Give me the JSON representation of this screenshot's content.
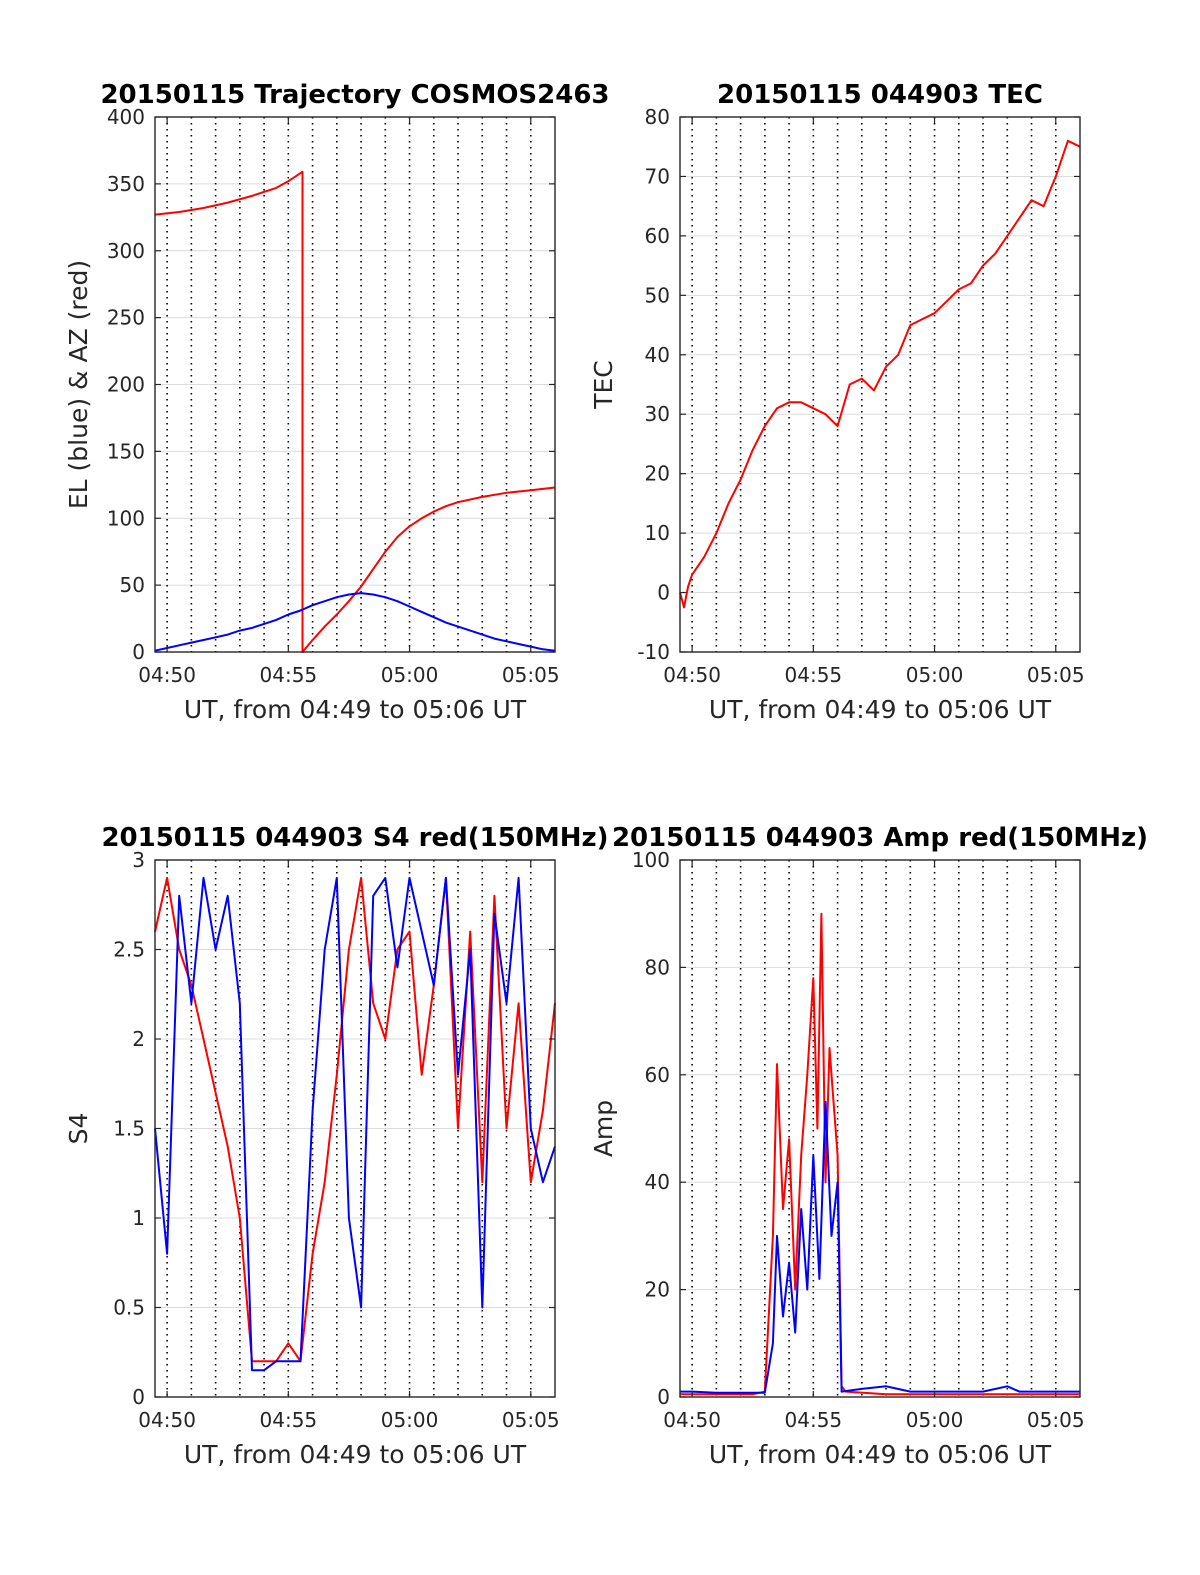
{
  "colors": {
    "red": "#ff0000",
    "blue": "#0000ff",
    "grid": "#dcdcdc",
    "axis": "#262626"
  },
  "chart_data": [
    {
      "type": "line",
      "title": "20150115 Trajectory COSMOS2463",
      "xlabel": "UT, from 04:49 to 05:06 UT",
      "ylabel": "EL (blue) & AZ (red)",
      "xlim": [
        "04:49:30",
        "05:06:00"
      ],
      "ylim": [
        0,
        400
      ],
      "xticks": [
        "04:50",
        "04:55",
        "05:00",
        "05:05"
      ],
      "yticks": [
        "0",
        "50",
        "100",
        "150",
        "200",
        "250",
        "300",
        "350",
        "400"
      ],
      "grid": true,
      "series": [
        {
          "color": "red",
          "x": [
            "04:49:30",
            "04:50:30",
            "04:51:30",
            "04:52:30",
            "04:53:30",
            "04:54:30",
            "04:55:00",
            "04:55:35",
            "04:55:35",
            "04:56:00",
            "04:56:30",
            "04:57:00",
            "04:57:30",
            "04:58:00",
            "04:58:30",
            "04:59:00",
            "04:59:30",
            "05:00:00",
            "05:00:30",
            "05:01:00",
            "05:01:30",
            "05:02:00",
            "05:03:00",
            "05:04:00",
            "05:05:00",
            "05:06:00"
          ],
          "values": [
            327,
            329,
            332,
            336,
            341,
            347,
            352,
            359,
            0,
            9,
            19,
            28,
            38,
            49,
            62,
            75,
            86,
            94,
            100,
            105,
            109,
            112,
            116,
            119,
            121,
            123
          ]
        },
        {
          "color": "blue",
          "x": [
            "04:49:30",
            "04:50:00",
            "04:50:30",
            "04:51:00",
            "04:51:30",
            "04:52:00",
            "04:52:30",
            "04:53:00",
            "04:53:30",
            "04:54:00",
            "04:54:30",
            "04:55:00",
            "04:55:30",
            "04:56:00",
            "04:56:30",
            "04:57:00",
            "04:57:30",
            "04:58:00",
            "04:58:30",
            "04:59:00",
            "04:59:30",
            "05:00:00",
            "05:00:30",
            "05:01:00",
            "05:01:30",
            "05:02:00",
            "05:02:30",
            "05:03:00",
            "05:03:30",
            "05:04:00",
            "05:04:30",
            "05:05:00",
            "05:05:30",
            "05:06:00"
          ],
          "values": [
            1,
            3,
            5,
            7,
            9,
            11,
            13,
            16,
            18,
            21,
            24,
            28,
            31,
            35,
            38,
            41,
            43,
            44,
            43,
            41,
            38,
            34,
            30,
            26,
            22,
            19,
            16,
            13,
            10,
            8,
            6,
            4,
            2,
            1
          ]
        }
      ]
    },
    {
      "type": "line",
      "title": "20150115 044903 TEC",
      "xlabel": "UT, from 04:49 to 05:06 UT",
      "ylabel": "TEC",
      "xlim": [
        "04:49:30",
        "05:06:00"
      ],
      "ylim": [
        -10,
        80
      ],
      "xticks": [
        "04:50",
        "04:55",
        "05:00",
        "05:05"
      ],
      "yticks": [
        "-10",
        "0",
        "10",
        "20",
        "30",
        "40",
        "50",
        "60",
        "70",
        "80"
      ],
      "grid": true,
      "series": [
        {
          "color": "red",
          "x": [
            "04:49:30",
            "04:49:40",
            "04:49:50",
            "04:50:00",
            "04:50:30",
            "04:51:00",
            "04:51:30",
            "04:52:00",
            "04:52:30",
            "04:53:00",
            "04:53:30",
            "04:54:00",
            "04:54:30",
            "04:55:00",
            "04:55:30",
            "04:56:00",
            "04:56:30",
            "04:57:00",
            "04:57:30",
            "04:58:00",
            "04:58:30",
            "04:59:00",
            "04:59:30",
            "05:00:00",
            "05:00:30",
            "05:01:00",
            "05:01:30",
            "05:02:00",
            "05:02:30",
            "05:03:00",
            "05:03:30",
            "05:04:00",
            "05:04:30",
            "05:05:00",
            "05:05:30",
            "05:06:00"
          ],
          "values": [
            0,
            -2.5,
            1,
            3,
            6,
            10,
            15,
            19,
            24,
            28,
            31,
            32,
            32,
            31,
            30,
            28,
            35,
            36,
            34,
            38,
            40,
            45,
            46,
            47,
            49,
            51,
            52,
            55,
            57,
            60,
            63,
            66,
            65,
            70,
            76,
            75
          ]
        }
      ]
    },
    {
      "type": "line",
      "title": "20150115 044903 S4 red(150MHz)",
      "xlabel": "UT, from 04:49 to 05:06 UT",
      "ylabel": "S4",
      "xlim": [
        "04:49:30",
        "05:06:00"
      ],
      "ylim": [
        0,
        3
      ],
      "xticks": [
        "04:50",
        "04:55",
        "05:00",
        "05:05"
      ],
      "yticks": [
        "0",
        "0.5",
        "1",
        "1.5",
        "2",
        "2.5",
        "3"
      ],
      "grid": true,
      "series": [
        {
          "color": "red",
          "x": [
            "04:49:30",
            "04:50:00",
            "04:50:30",
            "04:51:00",
            "04:51:30",
            "04:52:00",
            "04:52:30",
            "04:53:00",
            "04:53:30",
            "04:54:00",
            "04:54:30",
            "04:55:00",
            "04:55:30",
            "04:56:00",
            "04:56:30",
            "04:57:00",
            "04:57:30",
            "04:58:00",
            "04:58:30",
            "04:59:00",
            "04:59:30",
            "05:00:00",
            "05:00:30",
            "05:01:00",
            "05:01:30",
            "05:02:00",
            "05:02:30",
            "05:03:00",
            "05:03:30",
            "05:04:00",
            "05:04:30",
            "05:05:00",
            "05:05:30",
            "05:06:00"
          ],
          "values": [
            2.6,
            2.9,
            2.5,
            2.3,
            2.0,
            1.7,
            1.4,
            1.0,
            0.2,
            0.2,
            0.2,
            0.3,
            0.2,
            0.8,
            1.2,
            1.8,
            2.5,
            2.9,
            2.2,
            2.0,
            2.5,
            2.6,
            1.8,
            2.3,
            2.9,
            1.5,
            2.6,
            1.2,
            2.8,
            1.5,
            2.2,
            1.2,
            1.6,
            2.2
          ]
        },
        {
          "color": "blue",
          "x": [
            "04:49:30",
            "04:50:00",
            "04:50:30",
            "04:51:00",
            "04:51:30",
            "04:52:00",
            "04:52:30",
            "04:53:00",
            "04:53:30",
            "04:54:00",
            "04:54:30",
            "04:55:00",
            "04:55:30",
            "04:56:00",
            "04:56:30",
            "04:57:00",
            "04:57:30",
            "04:58:00",
            "04:58:30",
            "04:59:00",
            "04:59:30",
            "05:00:00",
            "05:00:30",
            "05:01:00",
            "05:01:30",
            "05:02:00",
            "05:02:30",
            "05:03:00",
            "05:03:30",
            "05:04:00",
            "05:04:30",
            "05:05:00",
            "05:05:30",
            "05:06:00"
          ],
          "values": [
            1.5,
            0.8,
            2.8,
            2.2,
            2.9,
            2.5,
            2.8,
            2.2,
            0.15,
            0.15,
            0.2,
            0.2,
            0.2,
            1.6,
            2.5,
            2.9,
            1.0,
            0.5,
            2.8,
            2.9,
            2.4,
            2.9,
            2.6,
            2.3,
            2.9,
            1.8,
            2.5,
            0.5,
            2.7,
            2.2,
            2.9,
            1.5,
            1.2,
            1.4
          ]
        }
      ]
    },
    {
      "type": "line",
      "title": "20150115 044903 Amp red(150MHz)",
      "xlabel": "UT, from 04:49 to 05:06 UT",
      "ylabel": "Amp",
      "xlim": [
        "04:49:30",
        "05:06:00"
      ],
      "ylim": [
        0,
        100
      ],
      "xticks": [
        "04:50",
        "04:55",
        "05:00",
        "05:05"
      ],
      "yticks": [
        "0",
        "20",
        "40",
        "60",
        "80",
        "100"
      ],
      "grid": true,
      "series": [
        {
          "color": "red",
          "x": [
            "04:49:30",
            "04:51:00",
            "04:52:30",
            "04:53:00",
            "04:53:20",
            "04:53:30",
            "04:53:45",
            "04:54:00",
            "04:54:15",
            "04:54:30",
            "04:54:45",
            "04:55:00",
            "04:55:10",
            "04:55:20",
            "04:55:30",
            "04:55:40",
            "04:55:50",
            "04:56:00",
            "04:56:10",
            "04:56:20",
            "04:58:00",
            "05:00:00",
            "05:02:00",
            "05:04:00",
            "05:06:00"
          ],
          "values": [
            0.5,
            0.5,
            0.5,
            1,
            30,
            62,
            35,
            48,
            20,
            45,
            60,
            78,
            50,
            90,
            40,
            65,
            55,
            45,
            2,
            1,
            0.5,
            0.5,
            0.5,
            0.5,
            0.5
          ]
        },
        {
          "color": "blue",
          "x": [
            "04:49:30",
            "04:50:00",
            "04:51:00",
            "04:52:00",
            "04:53:00",
            "04:53:20",
            "04:53:30",
            "04:53:45",
            "04:54:00",
            "04:54:15",
            "04:54:30",
            "04:54:45",
            "04:55:00",
            "04:55:15",
            "04:55:30",
            "04:55:45",
            "04:56:00",
            "04:56:10",
            "04:57:00",
            "04:58:00",
            "04:59:00",
            "05:00:00",
            "05:01:00",
            "05:02:00",
            "05:03:00",
            "05:03:30",
            "05:04:00",
            "05:05:00",
            "05:06:00"
          ],
          "values": [
            1,
            1,
            0.8,
            0.8,
            0.8,
            10,
            30,
            15,
            25,
            12,
            35,
            20,
            45,
            22,
            55,
            30,
            40,
            1,
            1.5,
            2,
            1,
            1,
            1,
            1,
            2,
            1,
            1,
            1,
            1
          ]
        }
      ]
    }
  ]
}
